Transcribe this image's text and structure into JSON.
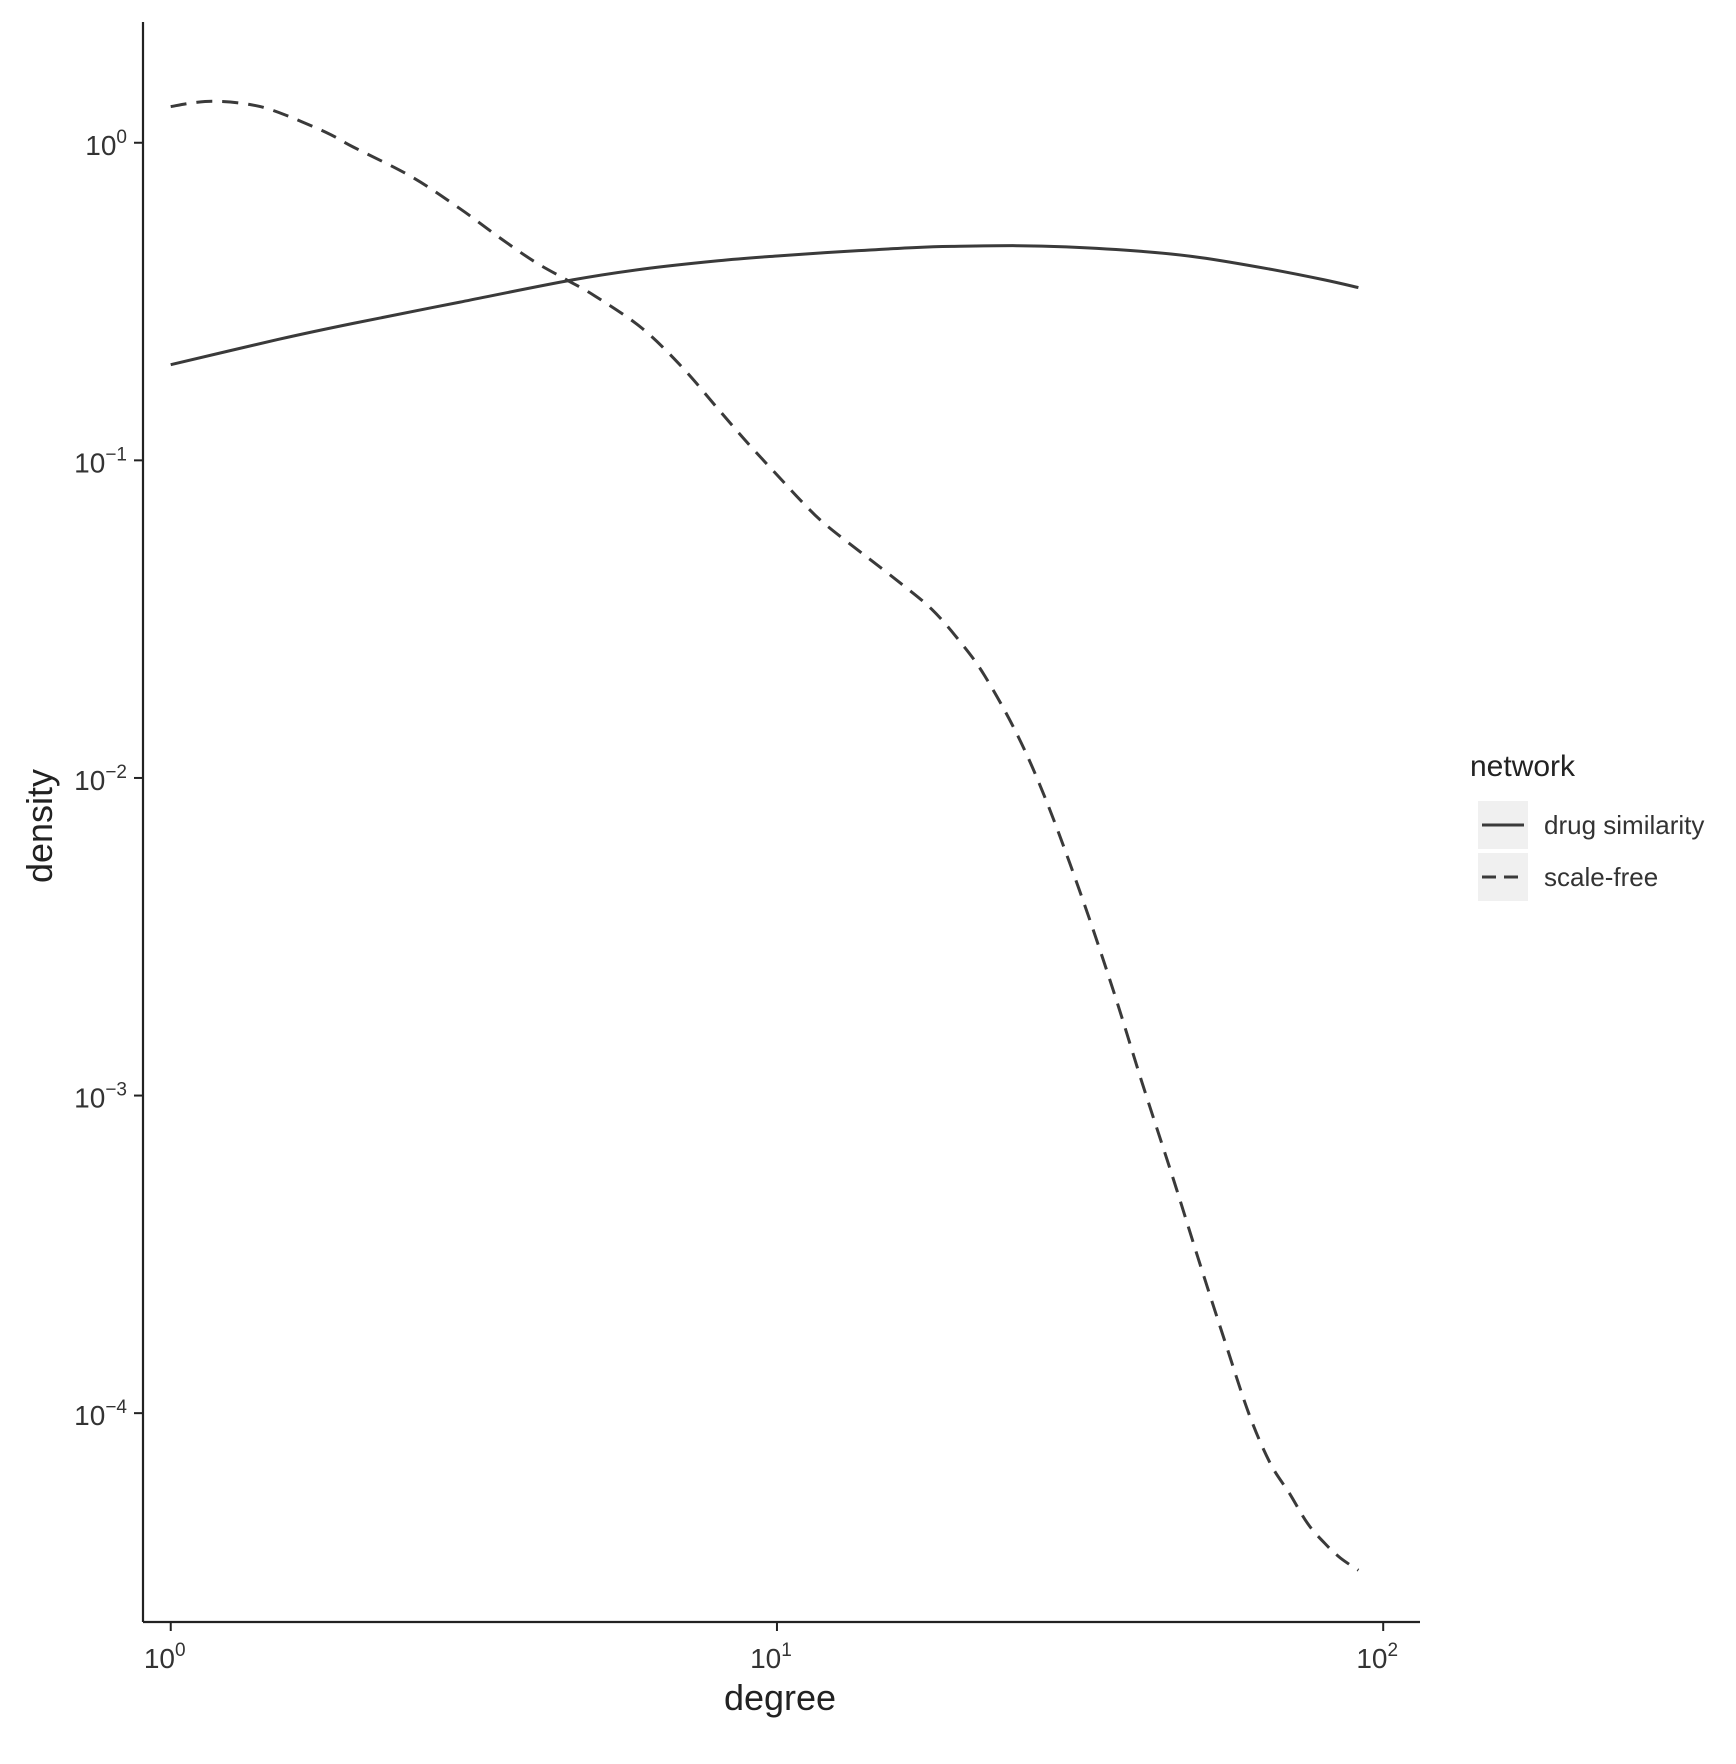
{
  "chart_data": {
    "type": "line",
    "xlabel": "degree",
    "ylabel": "density",
    "x_scale": "log10",
    "y_scale": "log10",
    "xlim": [
      0.9,
      115
    ],
    "ylim": [
      2.2e-05,
      2.4
    ],
    "x_ticks": [
      {
        "value": 1,
        "base": "10",
        "exp": "0"
      },
      {
        "value": 10,
        "base": "10",
        "exp": "1"
      },
      {
        "value": 100,
        "base": "10",
        "exp": "2"
      }
    ],
    "y_ticks": [
      {
        "value": 1,
        "base": "10",
        "exp": "0"
      },
      {
        "value": 0.1,
        "base": "10",
        "exp": "−1"
      },
      {
        "value": 0.01,
        "base": "10",
        "exp": "−2"
      },
      {
        "value": 0.001,
        "base": "10",
        "exp": "−3"
      },
      {
        "value": 0.0001,
        "base": "10",
        "exp": "−4"
      }
    ],
    "grid": false,
    "legend": {
      "title": "network",
      "position": "right"
    },
    "series": [
      {
        "name": "drug similarity",
        "linetype": "solid",
        "x": [
          1,
          1.5,
          2,
          3,
          4.6,
          6,
          8,
          10,
          13,
          17,
          20,
          25,
          30,
          40,
          50,
          65,
          80,
          91
        ],
        "y": [
          0.2,
          0.24,
          0.27,
          0.315,
          0.37,
          0.4,
          0.425,
          0.44,
          0.455,
          0.468,
          0.472,
          0.474,
          0.47,
          0.455,
          0.435,
          0.4,
          0.37,
          0.35
        ]
      },
      {
        "name": "scale-free",
        "linetype": "dashed",
        "x": [
          1,
          1.1,
          1.2,
          1.35,
          1.5,
          1.8,
          2,
          2.5,
          3,
          3.5,
          4,
          4.5,
          5,
          6,
          7,
          8,
          9,
          10,
          11,
          12,
          14,
          16,
          18,
          20,
          22,
          25,
          28,
          32,
          36,
          40,
          45,
          50,
          55,
          60,
          65,
          70,
          75,
          80,
          85,
          91
        ],
        "y": [
          1.3,
          1.34,
          1.35,
          1.32,
          1.25,
          1.08,
          0.97,
          0.78,
          0.62,
          0.5,
          0.42,
          0.37,
          0.33,
          0.26,
          0.195,
          0.145,
          0.112,
          0.09,
          0.074,
          0.063,
          0.05,
          0.041,
          0.034,
          0.027,
          0.021,
          0.0135,
          0.0082,
          0.0041,
          0.0021,
          0.0011,
          0.00055,
          0.00029,
          0.000165,
          0.0001,
          7e-05,
          5.6e-05,
          4.5e-05,
          3.9e-05,
          3.5e-05,
          3.2e-05
        ]
      }
    ]
  }
}
